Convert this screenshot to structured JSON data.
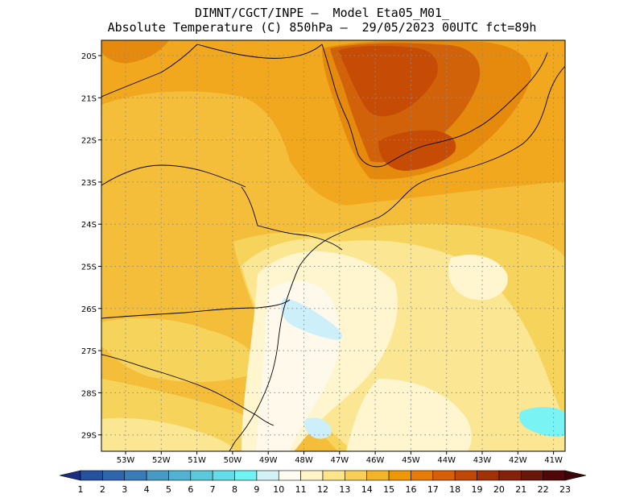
{
  "header": {
    "line1": "DIMNT/CGCT/INPE –  Model Eta05_M01_",
    "line2": "Absolute Temperature (C) 850hPa –  29/05/2023 00UTC fct=89h"
  },
  "axes": {
    "lat_labels": [
      "20S",
      "21S",
      "22S",
      "23S",
      "24S",
      "25S",
      "26S",
      "27S",
      "28S",
      "29S"
    ],
    "lon_labels": [
      "53W",
      "52W",
      "51W",
      "50W",
      "49W",
      "48W",
      "47W",
      "46W",
      "45W",
      "44W",
      "43W",
      "42W",
      "41W"
    ]
  },
  "colorbar": {
    "labels": [
      "1",
      "2",
      "3",
      "4",
      "5",
      "6",
      "7",
      "8",
      "9",
      "10",
      "11",
      "12",
      "13",
      "14",
      "15",
      "16",
      "17",
      "18",
      "19",
      "20",
      "21",
      "22",
      "23"
    ],
    "colors": [
      "#1f3f99",
      "#25519f",
      "#2d66ac",
      "#3a7cb9",
      "#469bc6",
      "#51b3d3",
      "#5bc9dc",
      "#63dde7",
      "#6ff3f3",
      "#d3f2f6",
      "#fffdf2",
      "#fff5c8",
      "#fde58a",
      "#f9cf55",
      "#f4b428",
      "#ee9806",
      "#e77b06",
      "#d85f06",
      "#c14704",
      "#a23106",
      "#84210a",
      "#6a1608",
      "#4f0707"
    ],
    "low_arrow_color": "#1a2f80",
    "high_arrow_color": "#3c0608"
  },
  "field_colors": {
    "t16": "#f1a81f",
    "t15": "#f4be3a",
    "t14": "#f6d45c",
    "t13": "#fbe694",
    "t12": "#fff6cf",
    "t11": "#fff9ec",
    "t10": "#cdeffa",
    "t9": "#7af3f5",
    "t17": "#e58a0c",
    "t18": "#d2620a",
    "t19": "#c64c05"
  }
}
